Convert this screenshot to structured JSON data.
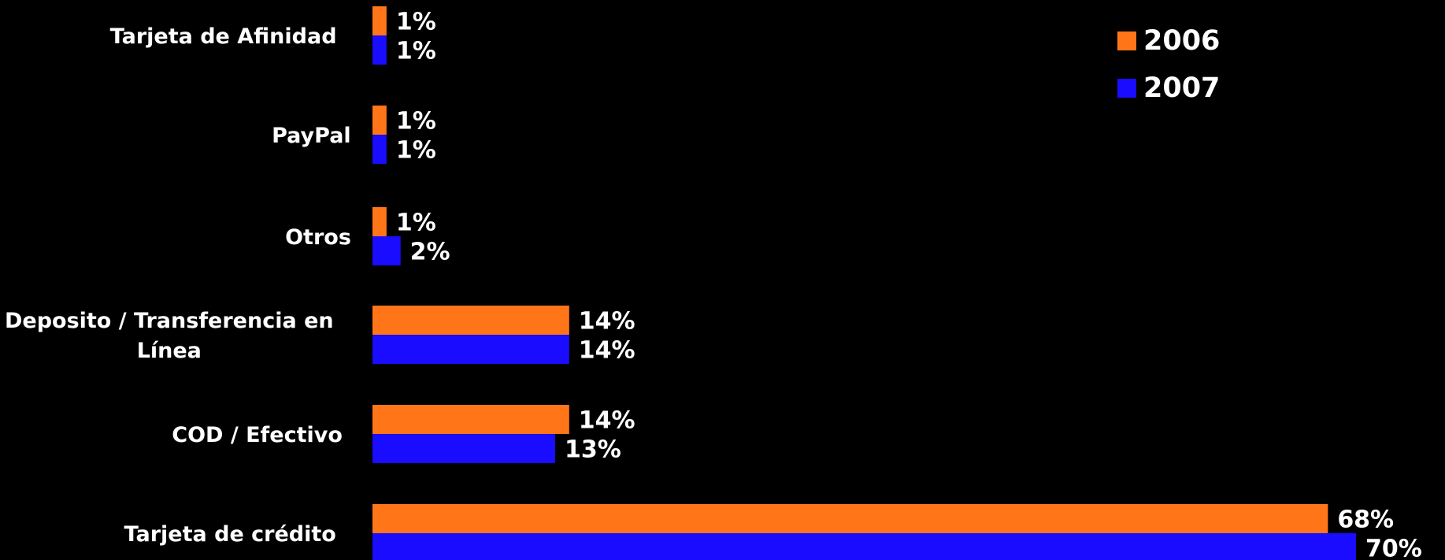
{
  "chart_data": {
    "type": "bar",
    "orientation": "horizontal",
    "categories": [
      "Tarjeta de Afinidad",
      "PayPal",
      "Otros",
      "Deposito / Transferencia en Línea",
      "COD / Efectivo",
      "Tarjeta de crédito"
    ],
    "series": [
      {
        "name": "2006",
        "color": "#ff7518",
        "values": [
          1,
          1,
          1,
          14,
          14,
          68
        ],
        "labels": [
          "1%",
          "1%",
          "1%",
          "14%",
          "14%",
          "68%"
        ]
      },
      {
        "name": "2007",
        "color": "#1a0cff",
        "values": [
          1,
          1,
          2,
          14,
          13,
          70
        ],
        "labels": [
          "1%",
          "1%",
          "2%",
          "14%",
          "13%",
          "70%"
        ]
      }
    ],
    "xlim": [
      0,
      70
    ],
    "grid": false,
    "legend": "top-right",
    "background": "#000000",
    "text_color": "#ffffff"
  }
}
